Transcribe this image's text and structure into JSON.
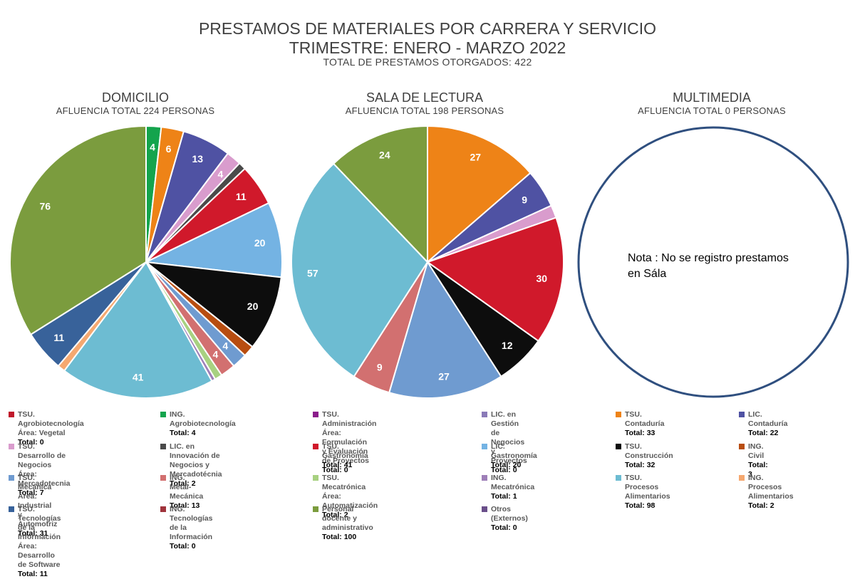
{
  "header": {
    "title": "PRESTAMOS DE MATERIALES POR CARRERA Y SERVICIO",
    "subtitle": "TRIMESTRE: ENERO - MARZO 2022",
    "total": "TOTAL DE PRESTAMOS OTORGADOS: 422"
  },
  "note": "Nota : No se registro prestamos\nen Sála",
  "chart_data": [
    {
      "type": "pie",
      "title": "DOMICILIO",
      "subtitle": "AFLUENCIA TOTAL 224 PERSONAS",
      "slices": [
        {
          "value": 4,
          "label": "4",
          "color": "#14a44d"
        },
        {
          "value": 6,
          "label": "6",
          "color": "#ee8317"
        },
        {
          "value": 13,
          "label": "13",
          "color": "#4f52a3"
        },
        {
          "value": 4,
          "label": "4",
          "color": "#d99ccd"
        },
        {
          "value": 2,
          "label": "",
          "color": "#4a4a4a"
        },
        {
          "value": 11,
          "label": "11",
          "color": "#d0192b"
        },
        {
          "value": 20,
          "label": "20",
          "color": "#74b3e3"
        },
        {
          "value": 20,
          "label": "20",
          "color": "#0d0d0d"
        },
        {
          "value": 3,
          "label": "",
          "color": "#b84d10"
        },
        {
          "value": 4,
          "label": "4",
          "color": "#6f9bd0"
        },
        {
          "value": 4,
          "label": "4",
          "color": "#d27070"
        },
        {
          "value": 2,
          "label": "",
          "color": "#a8d181"
        },
        {
          "value": 1,
          "label": "",
          "color": "#9e7fb8"
        },
        {
          "value": 41,
          "label": "41",
          "color": "#6dbcd2"
        },
        {
          "value": 2,
          "label": "",
          "color": "#f5a870"
        },
        {
          "value": 11,
          "label": "11",
          "color": "#38629a"
        },
        {
          "value": 76,
          "label": "76",
          "color": "#7b9c3e"
        }
      ]
    },
    {
      "type": "pie",
      "title": "SALA DE LECTURA",
      "subtitle": "AFLUENCIA TOTAL 198 PERSONAS",
      "slices": [
        {
          "value": 27,
          "label": "27",
          "color": "#ee8317"
        },
        {
          "value": 9,
          "label": "9",
          "color": "#4f52a3"
        },
        {
          "value": 3,
          "label": "",
          "color": "#d99ccd"
        },
        {
          "value": 30,
          "label": "30",
          "color": "#d0192b"
        },
        {
          "value": 12,
          "label": "12",
          "color": "#0d0d0d"
        },
        {
          "value": 27,
          "label": "27",
          "color": "#6f9bd0"
        },
        {
          "value": 9,
          "label": "9",
          "color": "#d27070"
        },
        {
          "value": 57,
          "label": "57",
          "color": "#6dbcd2"
        },
        {
          "value": 24,
          "label": "24",
          "color": "#7b9c3e"
        }
      ]
    },
    {
      "type": "pie",
      "title": "MULTIMEDIA",
      "subtitle": "AFLUENCIA TOTAL 0 PERSONAS",
      "slices": []
    }
  ],
  "legend": [
    {
      "label": "TSU.  Agrobiotecnología\nÁrea: Vegetal",
      "total": "Total: 0",
      "color": "#c0182b"
    },
    {
      "label": "ING. Agrobiotecnología",
      "total": "Total: 4",
      "color": "#14a44d"
    },
    {
      "label": "TSU. Administración Área: Formulación\n y Evaluación de Proyectos",
      "total": "Total: 0",
      "color": "#8b1c8b"
    },
    {
      "label": "LIC. en Gestión de Negocios y\nProyectos",
      "total": "Total: 0",
      "color": "#8a7ab8"
    },
    {
      "label": "TSU. Contaduría",
      "total": "Total: 33",
      "color": "#ee8317"
    },
    {
      "label": "LIC. Contaduría",
      "total": "Total: 22",
      "color": "#4f52a3"
    },
    {
      "label": "TSU. Desarrollo de Negocios\nÁrea: Mercadotecnia",
      "total": "Total: 7",
      "color": "#d99ccd"
    },
    {
      "label": "LIC. en Innovación de Negocios y\nMercadotécnia",
      "total": "Total: 2",
      "color": "#4a4a4a"
    },
    {
      "label": "TSU. Gastronomía",
      "total": "Total: 41",
      "color": "#d0192b"
    },
    {
      "label": "LIC. Gastronomía",
      "total": "Total: 20",
      "color": "#74b3e3"
    },
    {
      "label": "TSU. Construcción",
      "total": "Total: 32",
      "color": "#0d0d0d"
    },
    {
      "label": "ING. Civil",
      "total": "Total: 3",
      "color": "#b84d10"
    },
    {
      "label": "TSU. Mecánica Área: Industrial y\nAutomotriz",
      "total": "Total: 31",
      "color": "#6f9bd0"
    },
    {
      "label": "ING. Metal-Mecánica",
      "total": "Total: 13",
      "color": "#d27070"
    },
    {
      "label": "TSU. Mecatrónica\nÁrea: Automatización",
      "total": "Total: 2",
      "color": "#a8d181"
    },
    {
      "label": "ING. Mecatrónica",
      "total": "Total:  1",
      "color": "#9e7fb8"
    },
    {
      "label": "TSU. Procesos Alimentarios",
      "total": "Total: 98",
      "color": "#6dbcd2"
    },
    {
      "label": "ING. Procesos Alimentarios",
      "total": "Total: 2",
      "color": "#f5a870"
    },
    {
      "label": "TSU. Tecnologías de la Información\nÁrea: Desarrollo de Software",
      "total": "Total: 11",
      "color": "#38629a"
    },
    {
      "label": "ING. Tecnologías de la Información",
      "total": "Total: 0",
      "color": "#a0343c"
    },
    {
      "label": "Personal docente y administrativo",
      "total": "Total: 100",
      "color": "#7b9c3e"
    },
    {
      "label": "Otros (Externos)",
      "total": "Total: 0",
      "color": "#6a4f8a"
    }
  ]
}
